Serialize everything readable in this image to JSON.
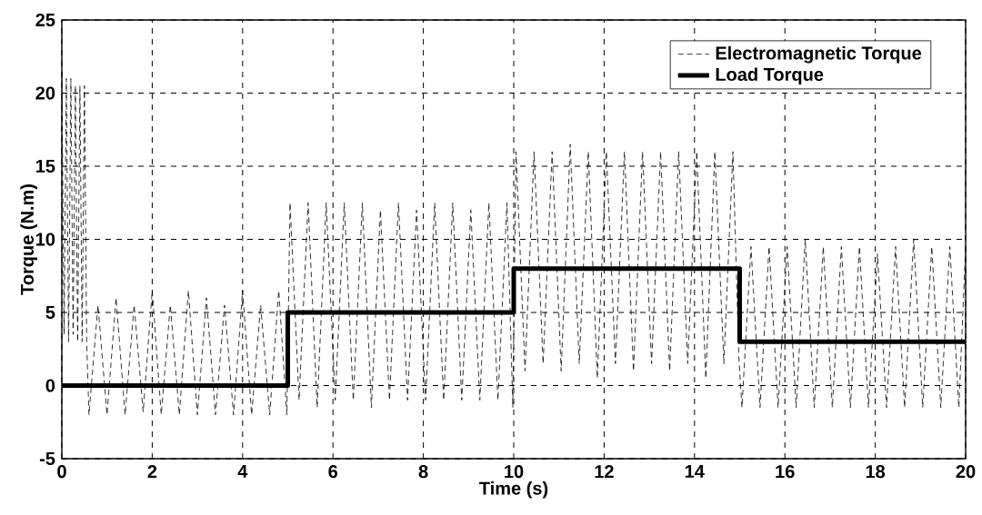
{
  "chart_data": {
    "type": "line",
    "xlabel": "Time (s)",
    "ylabel": "Torque (N.m)",
    "xlim": [
      0,
      20
    ],
    "ylim": [
      -5,
      25
    ],
    "xticks": [
      0,
      2,
      4,
      6,
      8,
      10,
      12,
      14,
      16,
      18,
      20
    ],
    "yticks": [
      -5,
      0,
      5,
      10,
      15,
      20,
      25
    ],
    "grid": true,
    "legend": "top right",
    "series": [
      {
        "name": "Electromagnetic Torque",
        "color": "#000000",
        "line_style": "dashed",
        "x": [
          0,
          0.05,
          0.1,
          0.15,
          0.2,
          0.25,
          0.3,
          0.35,
          0.4,
          0.45,
          0.5,
          0.55,
          0.6,
          0.8,
          1.0,
          1.2,
          1.4,
          1.6,
          1.8,
          2.0,
          2.2,
          2.4,
          2.6,
          2.8,
          3.0,
          3.2,
          3.4,
          3.6,
          3.8,
          4.0,
          4.2,
          4.4,
          4.6,
          4.8,
          4.98,
          5.05,
          5.25,
          5.45,
          5.65,
          5.85,
          6.05,
          6.25,
          6.45,
          6.65,
          6.85,
          7.05,
          7.25,
          7.45,
          7.65,
          7.85,
          8.05,
          8.25,
          8.45,
          8.65,
          8.85,
          9.05,
          9.25,
          9.45,
          9.65,
          9.85,
          9.98,
          10.05,
          10.25,
          10.45,
          10.65,
          10.85,
          11.05,
          11.25,
          11.45,
          11.65,
          11.85,
          12.05,
          12.25,
          12.45,
          12.65,
          12.85,
          13.05,
          13.25,
          13.45,
          13.65,
          13.85,
          14.05,
          14.25,
          14.45,
          14.65,
          14.85,
          14.98,
          15.05,
          15.25,
          15.45,
          15.65,
          15.85,
          16.05,
          16.25,
          16.45,
          16.65,
          16.85,
          17.05,
          17.25,
          17.45,
          17.65,
          17.85,
          18.05,
          18.25,
          18.45,
          18.65,
          18.85,
          19.05,
          19.25,
          19.45,
          19.65,
          19.85,
          20
        ],
        "values": [
          21.5,
          3.5,
          21,
          3,
          21,
          3.5,
          20.5,
          3,
          20.5,
          3,
          20.5,
          3,
          -2,
          5.5,
          -2,
          6,
          -2,
          5.5,
          -1.8,
          6.5,
          -2,
          5.5,
          -2,
          6.5,
          -2,
          6,
          -2,
          5.5,
          -2,
          6.5,
          -2,
          5.5,
          -2,
          6.5,
          -2,
          12.5,
          -1,
          12.5,
          -1.5,
          12.5,
          -1,
          12.5,
          -1,
          12.5,
          -1.5,
          12,
          -1,
          12.5,
          -1,
          12,
          -1,
          12.5,
          -1,
          12.5,
          -1,
          12,
          -1,
          12.5,
          -1,
          12.5,
          -1.5,
          16,
          1,
          16,
          1.5,
          16,
          1,
          16.5,
          1.5,
          16,
          0.5,
          16,
          1.5,
          16,
          1,
          16,
          1.5,
          16,
          1,
          16,
          1.5,
          16,
          0.5,
          16,
          1.5,
          16,
          2,
          -1.5,
          9.5,
          -1.5,
          9.5,
          -1.5,
          9.5,
          -1.5,
          10,
          -1.5,
          9.5,
          -1.5,
          9.5,
          -1.5,
          9.5,
          -1.5,
          9,
          -1.5,
          9.5,
          -1.5,
          10,
          -1.5,
          9.5,
          -1.5,
          9.5,
          -1.5,
          9.5
        ]
      },
      {
        "name": "Load Torque",
        "color": "#000000",
        "line_style": "solid",
        "x": [
          0,
          5,
          5,
          10,
          10,
          15,
          15,
          20
        ],
        "values": [
          0,
          0,
          5,
          5,
          8,
          8,
          3,
          3
        ]
      }
    ]
  }
}
